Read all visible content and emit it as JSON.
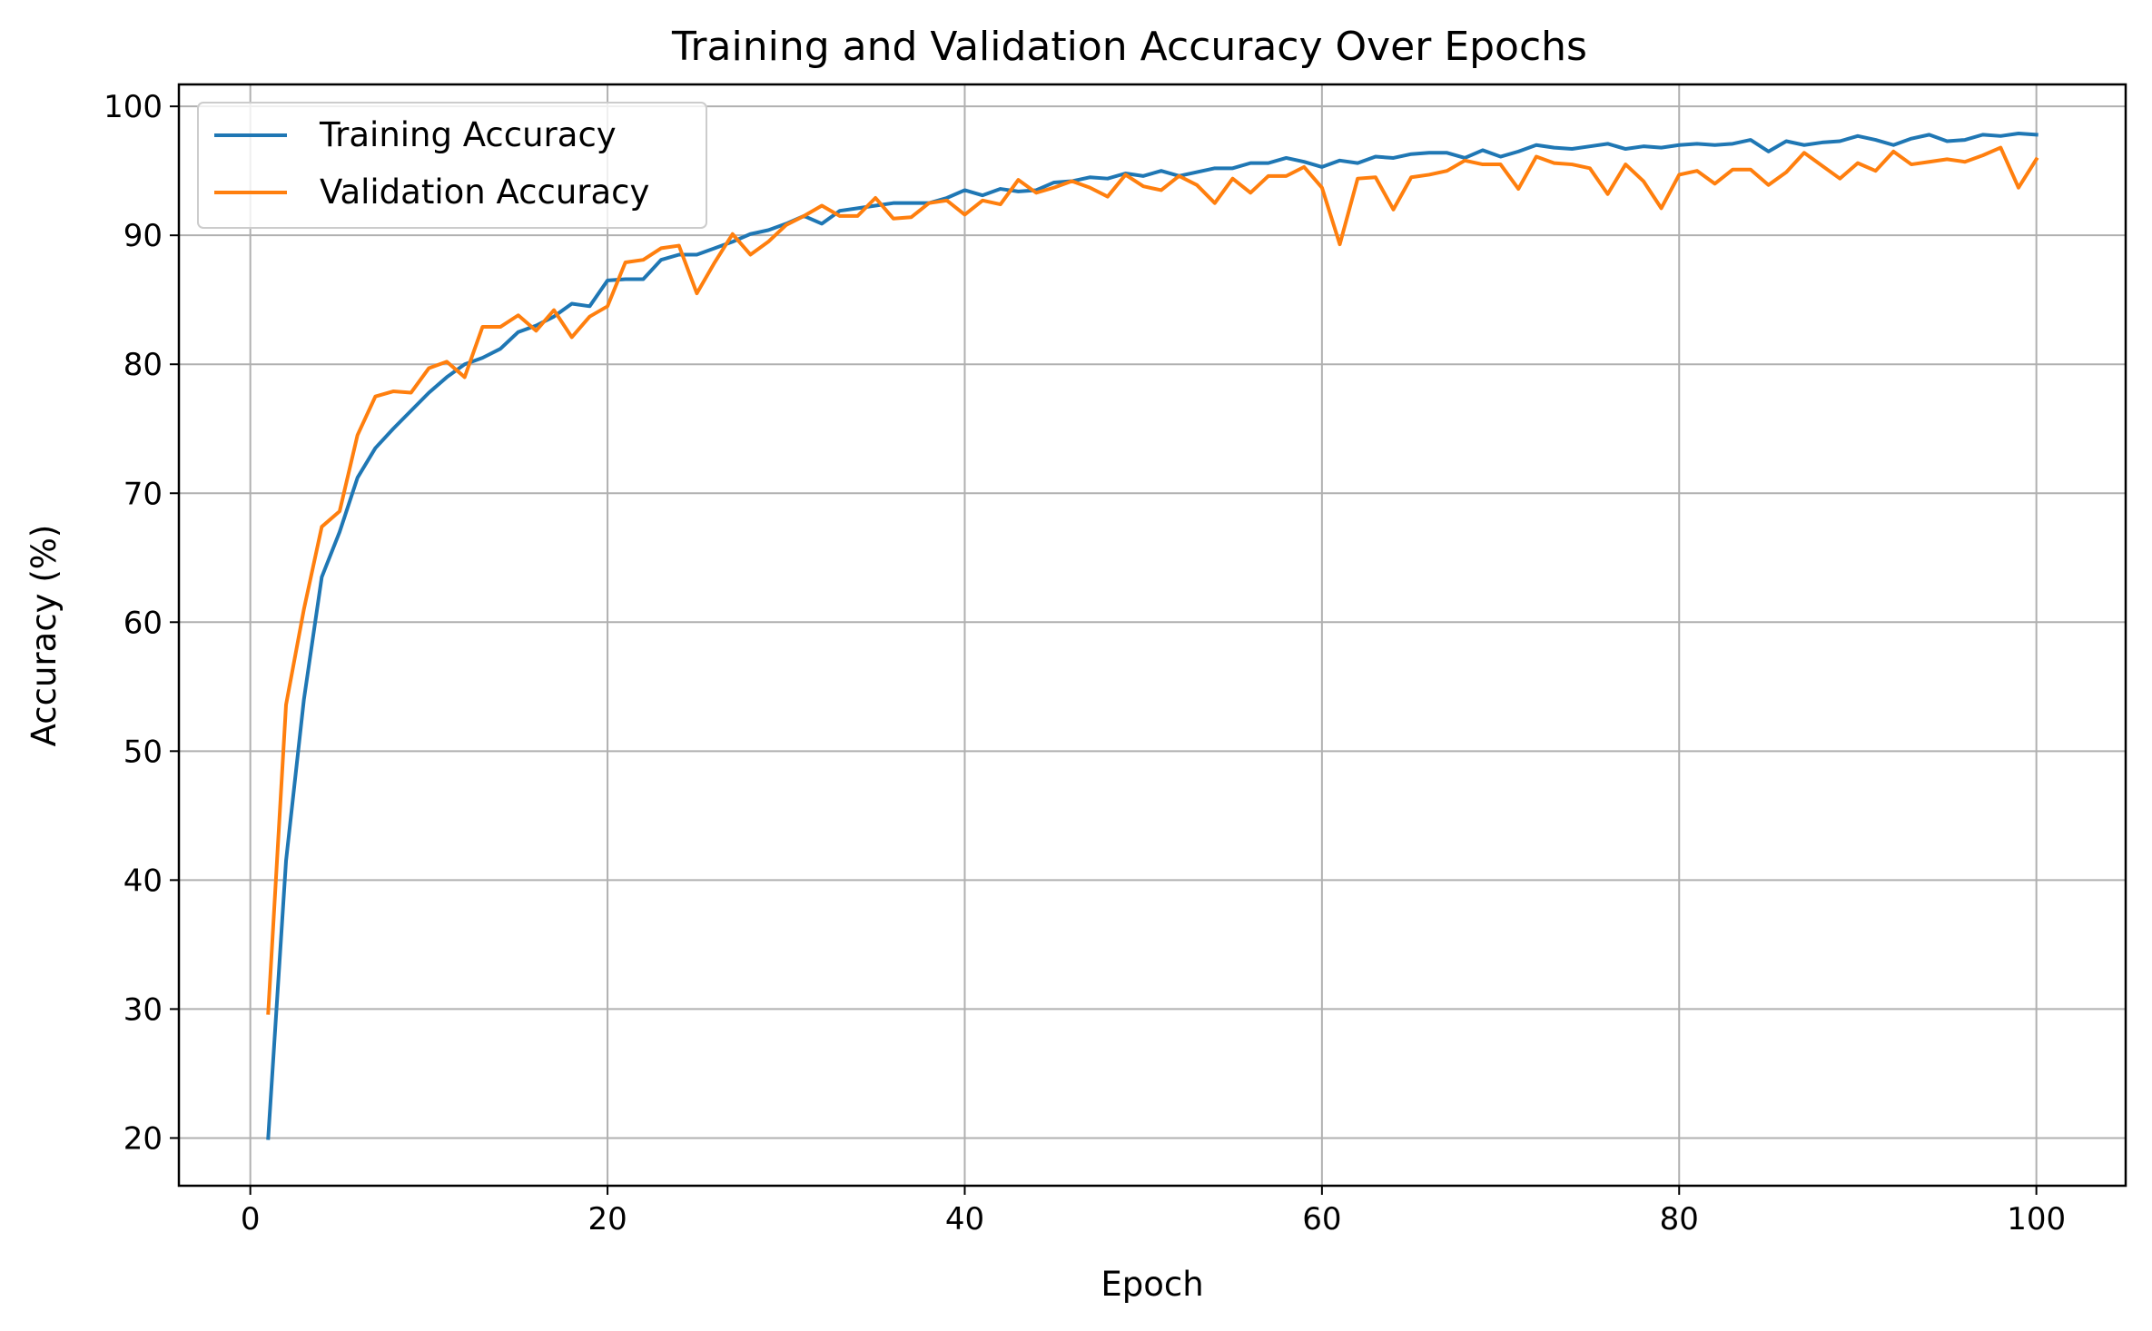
{
  "chart_data": {
    "type": "line",
    "title": "Training and Validation Accuracy Over Epochs",
    "xlabel": "Epoch",
    "ylabel": "Accuracy (%)",
    "xlim": [
      -4,
      105
    ],
    "ylim": [
      16.3,
      101.7
    ],
    "xticks": [
      0,
      20,
      40,
      60,
      80,
      100
    ],
    "yticks": [
      20,
      30,
      40,
      50,
      60,
      70,
      80,
      90,
      100
    ],
    "grid": true,
    "legend_position": "top-left",
    "x": [
      1,
      2,
      3,
      4,
      5,
      6,
      7,
      8,
      9,
      10,
      11,
      12,
      13,
      14,
      15,
      16,
      17,
      18,
      19,
      20,
      21,
      22,
      23,
      24,
      25,
      26,
      27,
      28,
      29,
      30,
      31,
      32,
      33,
      34,
      35,
      36,
      37,
      38,
      39,
      40,
      41,
      42,
      43,
      44,
      45,
      46,
      47,
      48,
      49,
      50,
      51,
      52,
      53,
      54,
      55,
      56,
      57,
      58,
      59,
      60,
      61,
      62,
      63,
      64,
      65,
      66,
      67,
      68,
      69,
      70,
      71,
      72,
      73,
      74,
      75,
      76,
      77,
      78,
      79,
      80,
      81,
      82,
      83,
      84,
      85,
      86,
      87,
      88,
      89,
      90,
      91,
      92,
      93,
      94,
      95,
      96,
      97,
      98,
      99,
      100
    ],
    "series": [
      {
        "name": "Training Accuracy",
        "color": "#1f77b4",
        "values": [
          20.0,
          41.5,
          54.0,
          63.5,
          67.0,
          71.2,
          73.5,
          75.0,
          76.4,
          77.8,
          79.0,
          80.0,
          80.5,
          81.2,
          82.5,
          83.0,
          83.7,
          84.7,
          84.5,
          86.5,
          86.6,
          86.6,
          88.1,
          88.5,
          88.5,
          89.0,
          89.5,
          90.1,
          90.4,
          90.9,
          91.5,
          90.9,
          91.9,
          92.1,
          92.3,
          92.5,
          92.5,
          92.5,
          92.9,
          93.5,
          93.1,
          93.6,
          93.4,
          93.5,
          94.1,
          94.2,
          94.5,
          94.4,
          94.8,
          94.6,
          95.0,
          94.6,
          94.9,
          95.2,
          95.2,
          95.6,
          95.6,
          96.0,
          95.7,
          95.3,
          95.8,
          95.6,
          96.1,
          96.0,
          96.3,
          96.4,
          96.4,
          96.0,
          96.6,
          96.1,
          96.5,
          97.0,
          96.8,
          96.7,
          96.9,
          97.1,
          96.7,
          96.9,
          96.8,
          97.0,
          97.1,
          97.0,
          97.1,
          97.4,
          96.5,
          97.3,
          97.0,
          97.2,
          97.3,
          97.7,
          97.4,
          97.0,
          97.5,
          97.8,
          97.3,
          97.4,
          97.8,
          97.7,
          97.9,
          97.8
        ]
      },
      {
        "name": "Validation Accuracy",
        "color": "#ff7f0e",
        "values": [
          29.7,
          53.6,
          61.0,
          67.4,
          68.6,
          74.5,
          77.5,
          77.9,
          77.8,
          79.7,
          80.2,
          79.0,
          82.9,
          82.9,
          83.8,
          82.6,
          84.2,
          82.1,
          83.7,
          84.5,
          87.9,
          88.1,
          89.0,
          89.2,
          85.5,
          87.9,
          90.1,
          88.5,
          89.5,
          90.8,
          91.5,
          92.3,
          91.5,
          91.5,
          92.9,
          91.3,
          91.4,
          92.5,
          92.7,
          91.6,
          92.7,
          92.4,
          94.3,
          93.3,
          93.7,
          94.2,
          93.7,
          93.0,
          94.7,
          93.8,
          93.5,
          94.6,
          93.9,
          92.5,
          94.4,
          93.3,
          94.6,
          94.6,
          95.3,
          93.7,
          89.3,
          94.4,
          94.5,
          92.0,
          94.5,
          94.7,
          95.0,
          95.8,
          95.5,
          95.5,
          93.6,
          96.1,
          95.6,
          95.5,
          95.2,
          93.2,
          95.5,
          94.2,
          92.1,
          94.7,
          95.0,
          94.0,
          95.1,
          95.1,
          93.9,
          94.9,
          96.4,
          95.4,
          94.4,
          95.6,
          95.0,
          96.5,
          95.5,
          95.7,
          95.9,
          95.7,
          96.2,
          96.8,
          93.7,
          95.9
        ]
      }
    ]
  }
}
